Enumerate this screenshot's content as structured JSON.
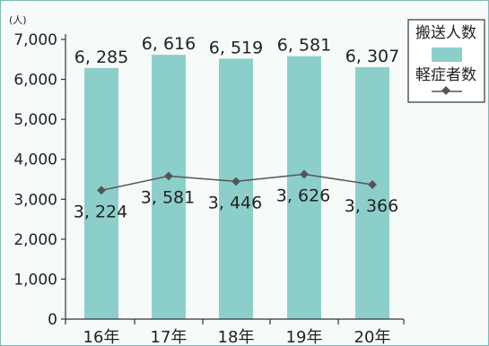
{
  "chart_data": {
    "type": "bar",
    "unit_label": "(人)",
    "categories": [
      "16年",
      "17年",
      "18年",
      "19年",
      "20年"
    ],
    "y_ticks": [
      "0",
      "1,000",
      "2,000",
      "3,000",
      "4,000",
      "5,000",
      "6,000",
      "7,000"
    ],
    "ylim": [
      0,
      7000
    ],
    "series": [
      {
        "name": "搬送人数",
        "type": "bar",
        "values": [
          6285,
          6616,
          6519,
          6581,
          6307
        ],
        "labels": [
          "6, 285",
          "6, 616",
          "6, 519",
          "6, 581",
          "6, 307"
        ],
        "color": "#8ccfca"
      },
      {
        "name": "軽症者数",
        "type": "line",
        "values": [
          3224,
          3581,
          3446,
          3626,
          3366
        ],
        "labels": [
          "3, 224",
          "3, 581",
          "3, 446",
          "3, 626",
          "3, 366"
        ],
        "color": "#555555"
      }
    ],
    "legend": {
      "position": "top-right"
    },
    "grid": false
  }
}
